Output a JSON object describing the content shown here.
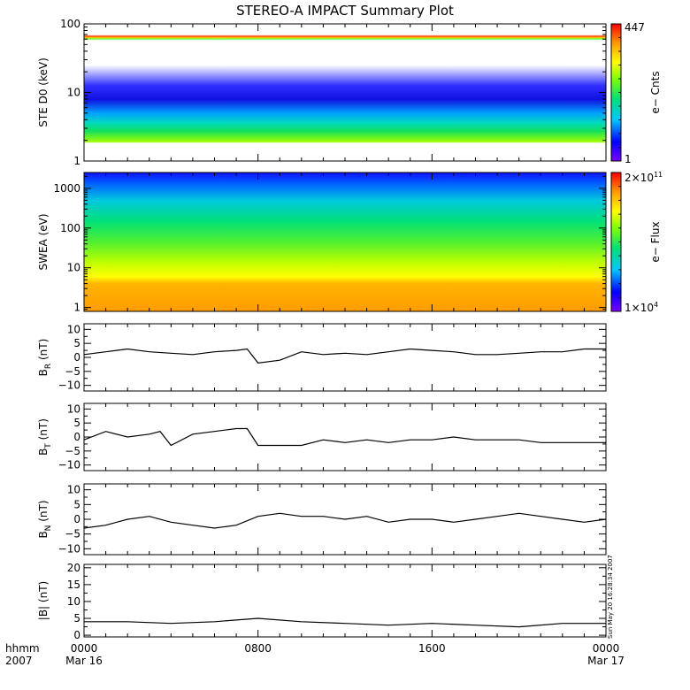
{
  "title": "STEREO-A IMPACT Summary Plot",
  "timestamp": "Sun May 20 16:28:34 2007",
  "time_axis": {
    "label_top": "hhmm",
    "label_bottom": "2007",
    "ticks": [
      {
        "hhmm": "0000",
        "date": "Mar 16",
        "hours": 0
      },
      {
        "hhmm": "0800",
        "date": "",
        "hours": 8
      },
      {
        "hhmm": "1600",
        "date": "",
        "hours": 16
      },
      {
        "hhmm": "0000",
        "date": "Mar 17",
        "hours": 24
      }
    ],
    "range_hours": [
      0,
      24
    ],
    "minor_step_hours": 1
  },
  "colors": {
    "trace": "#000000",
    "colorbar": [
      "#7a00ff",
      "#0000ff",
      "#00c8ff",
      "#00e07a",
      "#7fff00",
      "#ffff00",
      "#ff9900",
      "#ff0000"
    ]
  },
  "chart_data": [
    {
      "type": "heatmap",
      "id": "ste",
      "ylabel": "STE D0 (keV)",
      "yscale": "log",
      "ylim": [
        1,
        100
      ],
      "yticks": [
        {
          "label": "1",
          "v": 1
        },
        {
          "label": "10",
          "v": 10
        },
        {
          "label": "100",
          "v": 100
        }
      ],
      "colorbar": {
        "label": "e− Cnts",
        "max": "447",
        "min": "1"
      }
    },
    {
      "type": "heatmap",
      "id": "swea",
      "ylabel": "SWEA (eV)",
      "yscale": "log",
      "ylim": [
        0.8,
        2500
      ],
      "yticks": [
        {
          "label": "1",
          "v": 1
        },
        {
          "label": "10",
          "v": 10
        },
        {
          "label": "100",
          "v": 100
        },
        {
          "label": "1000",
          "v": 1000
        }
      ],
      "colorbar": {
        "label": "e− Flux",
        "max_base": "2×10",
        "max_exp": "11",
        "min_base": "1×10",
        "min_exp": "4"
      }
    },
    {
      "type": "line",
      "id": "br",
      "ylabel_main": "B",
      "ylabel_sub": "R",
      "ylabel_unit": "(nT)",
      "ylim": [
        -12,
        12
      ],
      "yticks": [
        {
          "label": "10",
          "v": 10
        },
        {
          "label": "5",
          "v": 5
        },
        {
          "label": "0",
          "v": 0
        },
        {
          "label": "−5",
          "v": -5
        },
        {
          "label": "−10",
          "v": -10
        }
      ],
      "x": [
        0,
        1,
        2,
        3,
        4,
        5,
        6,
        7,
        7.5,
        8,
        9,
        10,
        11,
        12,
        13,
        14,
        15,
        16,
        17,
        18,
        19,
        20,
        21,
        22,
        23,
        24
      ],
      "y": [
        1,
        2,
        3,
        2,
        1.5,
        1,
        2,
        2.5,
        3,
        -2,
        -1,
        2,
        1,
        1.5,
        1,
        2,
        3,
        2.5,
        2,
        1,
        1,
        1.5,
        2,
        2,
        3,
        3
      ]
    },
    {
      "type": "line",
      "id": "bt",
      "ylabel_main": "B",
      "ylabel_sub": "T",
      "ylabel_unit": "(nT)",
      "ylim": [
        -12,
        12
      ],
      "yticks": [
        {
          "label": "10",
          "v": 10
        },
        {
          "label": "5",
          "v": 5
        },
        {
          "label": "0",
          "v": 0
        },
        {
          "label": "−5",
          "v": -5
        },
        {
          "label": "−10",
          "v": -10
        }
      ],
      "x": [
        0,
        1,
        2,
        3,
        3.5,
        4,
        5,
        6,
        7,
        7.5,
        8,
        9,
        10,
        11,
        12,
        13,
        14,
        15,
        16,
        17,
        18,
        19,
        20,
        21,
        22,
        23,
        24
      ],
      "y": [
        -1,
        2,
        0,
        1,
        2,
        -3,
        1,
        2,
        3,
        3,
        -3,
        -3,
        -3,
        -1,
        -2,
        -1,
        -2,
        -1,
        -1,
        0,
        -1,
        -1,
        -1,
        -2,
        -2,
        -2,
        -2
      ]
    },
    {
      "type": "line",
      "id": "bn",
      "ylabel_main": "B",
      "ylabel_sub": "N",
      "ylabel_unit": "(nT)",
      "ylim": [
        -12,
        12
      ],
      "yticks": [
        {
          "label": "10",
          "v": 10
        },
        {
          "label": "5",
          "v": 5
        },
        {
          "label": "0",
          "v": 0
        },
        {
          "label": "−5",
          "v": -5
        },
        {
          "label": "−10",
          "v": -10
        }
      ],
      "x": [
        0,
        1,
        2,
        3,
        4,
        5,
        6,
        7,
        8,
        9,
        10,
        11,
        12,
        13,
        14,
        15,
        16,
        17,
        18,
        19,
        20,
        21,
        22,
        23,
        24
      ],
      "y": [
        -3,
        -2,
        0,
        1,
        -1,
        -2,
        -3,
        -2,
        1,
        2,
        1,
        1,
        0,
        1,
        -1,
        0,
        0,
        -1,
        0,
        1,
        2,
        1,
        0,
        -1,
        0
      ]
    },
    {
      "type": "line",
      "id": "bmag",
      "ylabel_main": "|B| (nT)",
      "ylim": [
        -0.5,
        21
      ],
      "yticks": [
        {
          "label": "20",
          "v": 20
        },
        {
          "label": "15",
          "v": 15
        },
        {
          "label": "10",
          "v": 10
        },
        {
          "label": "5",
          "v": 5
        },
        {
          "label": "0",
          "v": 0
        }
      ],
      "x": [
        0,
        2,
        4,
        6,
        8,
        10,
        12,
        14,
        16,
        18,
        20,
        22,
        24
      ],
      "y": [
        4,
        4,
        3.5,
        4,
        5,
        4,
        3.5,
        3,
        3.5,
        3,
        2.5,
        3.5,
        3.5
      ]
    }
  ]
}
